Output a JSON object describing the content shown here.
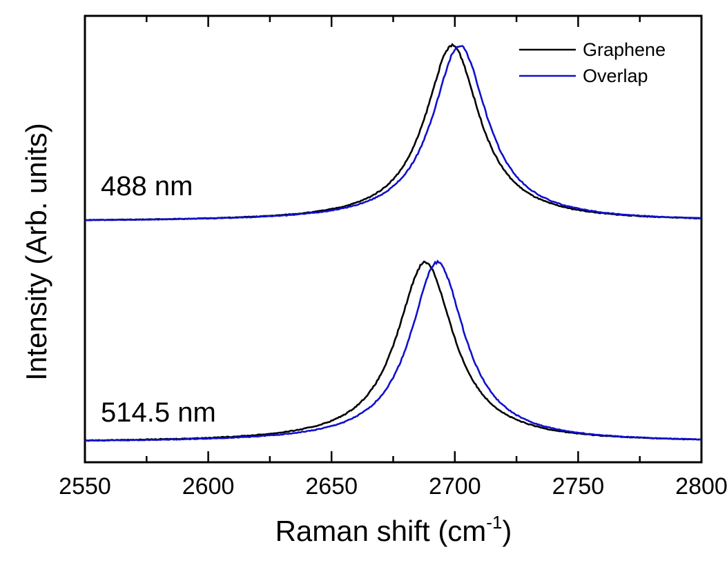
{
  "chart_data": {
    "type": "line",
    "xlabel": "Raman shift (cm",
    "xlabel_sup": "-1",
    "xlabel_close": ")",
    "ylabel": "Intensity (Arb. units)",
    "xlim": [
      2550,
      2800
    ],
    "x_ticks": [
      "2550",
      "2600",
      "2650",
      "2700",
      "2750",
      "2800"
    ],
    "y_ticks_shown": false,
    "legend_position": "top-right",
    "legend": [
      {
        "name": "Graphene",
        "color": "#000000"
      },
      {
        "name": "Overlap",
        "color": "#1010cc"
      }
    ],
    "annotations": [
      {
        "text": "488 nm"
      },
      {
        "text": "514.5 nm"
      }
    ],
    "panels": [
      {
        "excitation": "488 nm",
        "baseline": 0,
        "peak_height": 1,
        "series": [
          {
            "name": "Graphene",
            "color": "#000000",
            "peak_center": 2699,
            "gamma": 13.5
          },
          {
            "name": "Overlap",
            "color": "#1010cc",
            "peak_center": 2702,
            "gamma": 13.5
          }
        ]
      },
      {
        "excitation": "514.5 nm",
        "baseline": 0,
        "peak_height": 1,
        "series": [
          {
            "name": "Graphene",
            "color": "#000000",
            "peak_center": 2688,
            "gamma": 14
          },
          {
            "name": "Overlap",
            "color": "#1010cc",
            "peak_center": 2693,
            "gamma": 13.5
          }
        ]
      }
    ]
  }
}
